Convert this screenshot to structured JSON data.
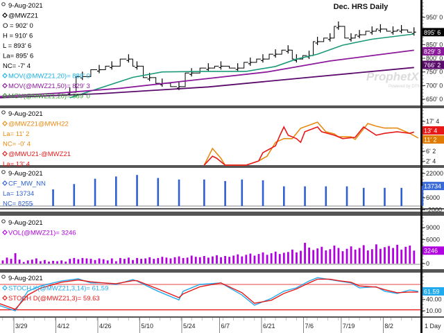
{
  "title": "Dec. HRS Daily",
  "watermark": {
    "brand": "ProphetX",
    "sub": "Powered by DTN"
  },
  "colors": {
    "price": "#000000",
    "ma20": "#1a9a7a",
    "ma50": "#8a1a9a",
    "ma100": "#5a0a6a",
    "spread1": "#e88a10",
    "spread2": "#e81818",
    "cf": "#2f5fd0",
    "vol": "#b000e0",
    "stochK": "#22aaee",
    "stochD": "#e81818"
  },
  "panels": {
    "price": {
      "legend": [
        "9-Aug-2021",
        "@MWZ21",
        "O = 902' 0",
        "H = 910' 6",
        "L = 893' 6",
        "La= 895' 6",
        "NC= -7' 4",
        "MOV(@MWZ21,20)= 889' 0",
        "MOV(@MWZ21,50)= 829' 3",
        "MOV(@MWZ21,20)= 889' 0"
      ],
      "axis_ticks": [
        "950' 0",
        "850' 0",
        "800' 0",
        "750' 0",
        "700' 0",
        "650' 0"
      ],
      "value_boxes": {
        "last": "895' 6",
        "ma50": "829' 3",
        "ma100": "766' 2"
      }
    },
    "spread": {
      "legend": [
        "9-Aug-2021",
        "@MWZ21@MWH22",
        "La= 11' 2",
        "NC= -0' 4",
        "@MWU21-@MWZ21",
        "La= 13' 4"
      ],
      "axis_ticks": [
        "17' 4",
        "6' 2",
        "2' 4"
      ],
      "value_boxes": {
        "red": "13' 4",
        "orange": "11' 2"
      }
    },
    "cf": {
      "legend": [
        "9-Aug-2021",
        "CF_MW_NN",
        "La= 13734",
        "NC= 8255"
      ],
      "axis_ticks": [
        "22000",
        "6000",
        "-2000"
      ],
      "value_box": "13734"
    },
    "volume": {
      "legend": [
        "9-Aug-2021",
        "VOL(@MWZ21)= 3246"
      ],
      "axis_ticks": [
        "9000",
        "6000",
        "0"
      ],
      "value_box": "3246"
    },
    "stoch": {
      "legend": [
        "9-Aug-2021",
        "STOCH K(@MWZ21,3,14)= 61.59",
        "STOCH D(@MWZ21,3)= 59.63"
      ],
      "axis_ticks": [
        "40.00",
        "10.00"
      ],
      "value_box": "61.59"
    }
  },
  "x_axis": {
    "labels": [
      "3/29",
      "4/12",
      "4/26",
      "5/10",
      "5/24",
      "6/7",
      "6/21",
      "7/6",
      "7/19",
      "8/2"
    ],
    "interval": "1 Day"
  },
  "chart_data": [
    {
      "type": "line",
      "title": "Dec. HRS Daily",
      "series": [
        {
          "name": "@MWZ21 close",
          "points": [
            [
              13,
              675
            ],
            [
              16,
              733
            ],
            [
              20,
              758
            ],
            [
              23,
              771
            ],
            [
              27,
              797
            ],
            [
              29,
              771
            ],
            [
              32,
              729
            ],
            [
              35,
              708
            ],
            [
              39,
              696
            ],
            [
              42,
              746
            ],
            [
              46,
              764
            ],
            [
              49,
              771
            ],
            [
              53,
              764
            ],
            [
              56,
              785
            ],
            [
              59,
              797
            ],
            [
              62,
              815
            ],
            [
              65,
              830
            ],
            [
              67,
              797
            ],
            [
              70,
              810
            ],
            [
              72,
              861
            ],
            [
              75,
              874
            ],
            [
              77,
              917
            ],
            [
              80,
              874
            ],
            [
              82,
              886
            ],
            [
              85,
              899
            ],
            [
              87,
              907
            ],
            [
              90,
              899
            ],
            [
              92,
              904
            ],
            [
              95,
              895.75
            ]
          ]
        },
        {
          "name": "MOV 20",
          "points": [
            [
              13,
              655
            ],
            [
              20,
              690
            ],
            [
              28,
              730
            ],
            [
              35,
              750
            ],
            [
              45,
              752
            ],
            [
              55,
              752
            ],
            [
              62,
              770
            ],
            [
              67,
              797
            ],
            [
              72,
              815
            ],
            [
              78,
              848
            ],
            [
              85,
              870
            ],
            [
              95,
              889
            ]
          ]
        },
        {
          "name": "MOV 50",
          "points": [
            [
              -4,
              660
            ],
            [
              10,
              672
            ],
            [
              25,
              690
            ],
            [
              46,
              726
            ],
            [
              60,
              750
            ],
            [
              75,
              790
            ],
            [
              95,
              829.4
            ]
          ]
        },
        {
          "name": "MOV 100",
          "points": [
            [
              -4,
              655
            ],
            [
              20,
              670
            ],
            [
              46,
              695
            ],
            [
              70,
              730
            ],
            [
              95,
              766.25
            ]
          ]
        }
      ],
      "ylim": [
        640,
        970
      ]
    },
    {
      "type": "line",
      "series": [
        {
          "name": "@MWZ21@MWH22",
          "points": [
            [
              45,
              1.0
            ],
            [
              47,
              7.3
            ],
            [
              49,
              3.6
            ],
            [
              50,
              1.0
            ],
            [
              55,
              1.0
            ],
            [
              58,
              2.6
            ],
            [
              60,
              4.4
            ],
            [
              62,
              9.6
            ],
            [
              64,
              11
            ],
            [
              66,
              11
            ],
            [
              68,
              14.9
            ],
            [
              72,
              17.2
            ],
            [
              74,
              13.6
            ],
            [
              76,
              12.8
            ],
            [
              77,
              11.7
            ],
            [
              80,
              11.7
            ],
            [
              81,
              10.7
            ],
            [
              84,
              16.7
            ],
            [
              86,
              15.7
            ],
            [
              88,
              15.0
            ],
            [
              91,
              15.0
            ],
            [
              94,
              13.0
            ],
            [
              96,
              11.25
            ]
          ]
        },
        {
          "name": "@MWU21-@MWZ21",
          "points": [
            [
              45,
              1.0
            ],
            [
              47,
              4.4
            ],
            [
              48,
              3.6
            ],
            [
              50,
              1.0
            ],
            [
              55,
              1.0
            ],
            [
              58,
              2.6
            ],
            [
              59,
              5.7
            ],
            [
              62,
              8.3
            ],
            [
              63,
              12
            ],
            [
              64,
              15.4
            ],
            [
              65,
              12.3
            ],
            [
              67,
              11.0
            ],
            [
              68,
              9.6
            ],
            [
              69,
              13.6
            ],
            [
              72,
              15.4
            ],
            [
              73,
              13.6
            ],
            [
              76,
              12.3
            ],
            [
              78,
              11.0
            ],
            [
              81,
              11.5
            ],
            [
              83,
              15.4
            ],
            [
              86,
              12.3
            ],
            [
              88,
              13.0
            ],
            [
              91,
              13.6
            ],
            [
              94,
              13.0
            ],
            [
              95,
              13.5
            ]
          ]
        }
      ],
      "ylim": [
        0,
        20
      ]
    },
    {
      "type": "bar",
      "name": "CF_MW_NN",
      "points": [
        [
          4,
          2500
        ],
        [
          9,
          11500
        ],
        [
          14,
          15000
        ],
        [
          19,
          18500
        ],
        [
          24,
          20000
        ],
        [
          29,
          21000
        ],
        [
          34,
          19000
        ],
        [
          39,
          18000
        ],
        [
          45,
          18000
        ],
        [
          50,
          17000
        ],
        [
          54,
          18000
        ],
        [
          59,
          17500
        ],
        [
          64,
          13500
        ],
        [
          69,
          13500
        ],
        [
          74,
          13500
        ],
        [
          79,
          13500
        ],
        [
          83,
          12500
        ],
        [
          88,
          12500
        ],
        [
          92,
          12500
        ],
        [
          97,
          13734
        ]
      ],
      "ylim": [
        -2000,
        26000
      ]
    },
    {
      "type": "bar",
      "name": "VOL(@MWZ21)",
      "start_index": -3,
      "values": [
        800,
        1500,
        1200,
        2600,
        1000,
        400,
        800,
        1000,
        1300,
        600,
        900,
        500,
        700,
        600,
        800,
        500,
        1200,
        1400,
        1100,
        1400,
        1300,
        1200,
        900,
        1300,
        1100,
        800,
        1300,
        600,
        1400,
        1200,
        1500,
        900,
        1400,
        1200,
        1300,
        1600,
        1200,
        1400,
        1700,
        1500,
        1300,
        1600,
        1800,
        1400,
        1500,
        2000,
        1700,
        1600,
        1900,
        1500,
        1800,
        2100,
        1600,
        1900,
        1700,
        2000,
        2300,
        1800,
        2200,
        2500,
        2000,
        2400,
        2800,
        2200,
        2600,
        3000,
        2400,
        2700,
        2900,
        3500,
        2800,
        3200,
        5200,
        4000,
        3400,
        3800,
        4200,
        3300,
        3600,
        4500,
        3900,
        3100,
        3700,
        4300,
        3500,
        3900,
        4600,
        3300,
        3600,
        4800,
        3700,
        4100,
        4400,
        3900,
        4700,
        3500,
        4200,
        4500,
        3246
      ],
      "ylim": [
        0,
        11000
      ]
    },
    {
      "type": "line",
      "series": [
        {
          "name": "STOCH K",
          "points": [
            [
              -4,
              25
            ],
            [
              0,
              10
            ],
            [
              3,
              62
            ],
            [
              6,
              76
            ],
            [
              11,
              89
            ],
            [
              15,
              95
            ],
            [
              18,
              84
            ],
            [
              21,
              84
            ],
            [
              24,
              80
            ],
            [
              28,
              93
            ],
            [
              29,
              89
            ],
            [
              34,
              62
            ],
            [
              39,
              39
            ],
            [
              40,
              62
            ],
            [
              44,
              80
            ],
            [
              49,
              84
            ],
            [
              54,
              52
            ],
            [
              57,
              25
            ],
            [
              61,
              43
            ],
            [
              64,
              62
            ],
            [
              67,
              71
            ],
            [
              70,
              89
            ],
            [
              72,
              98
            ],
            [
              75,
              93
            ],
            [
              77,
              89
            ],
            [
              80,
              84
            ],
            [
              82,
              71
            ],
            [
              86,
              74
            ],
            [
              88,
              62
            ],
            [
              91,
              56
            ],
            [
              94,
              65
            ],
            [
              96,
              61.59
            ]
          ]
        },
        {
          "name": "STOCH D",
          "points": [
            [
              -4,
              30
            ],
            [
              0,
              14
            ],
            [
              3,
              52
            ],
            [
              6,
              70
            ],
            [
              11,
              86
            ],
            [
              15,
              92
            ],
            [
              18,
              87
            ],
            [
              21,
              84
            ],
            [
              24,
              82
            ],
            [
              28,
              90
            ],
            [
              29,
              90
            ],
            [
              34,
              68
            ],
            [
              39,
              45
            ],
            [
              40,
              55
            ],
            [
              44,
              74
            ],
            [
              49,
              84
            ],
            [
              54,
              58
            ],
            [
              57,
              30
            ],
            [
              61,
              38
            ],
            [
              64,
              56
            ],
            [
              67,
              68
            ],
            [
              70,
              84
            ],
            [
              72,
              94
            ],
            [
              75,
              94
            ],
            [
              77,
              90
            ],
            [
              80,
              86
            ],
            [
              82,
              76
            ],
            [
              86,
              73
            ],
            [
              88,
              66
            ],
            [
              91,
              58
            ],
            [
              94,
              60
            ],
            [
              96,
              59.63
            ]
          ]
        }
      ],
      "ylim": [
        0,
        100
      ],
      "levels": [
        80,
        20
      ]
    }
  ]
}
